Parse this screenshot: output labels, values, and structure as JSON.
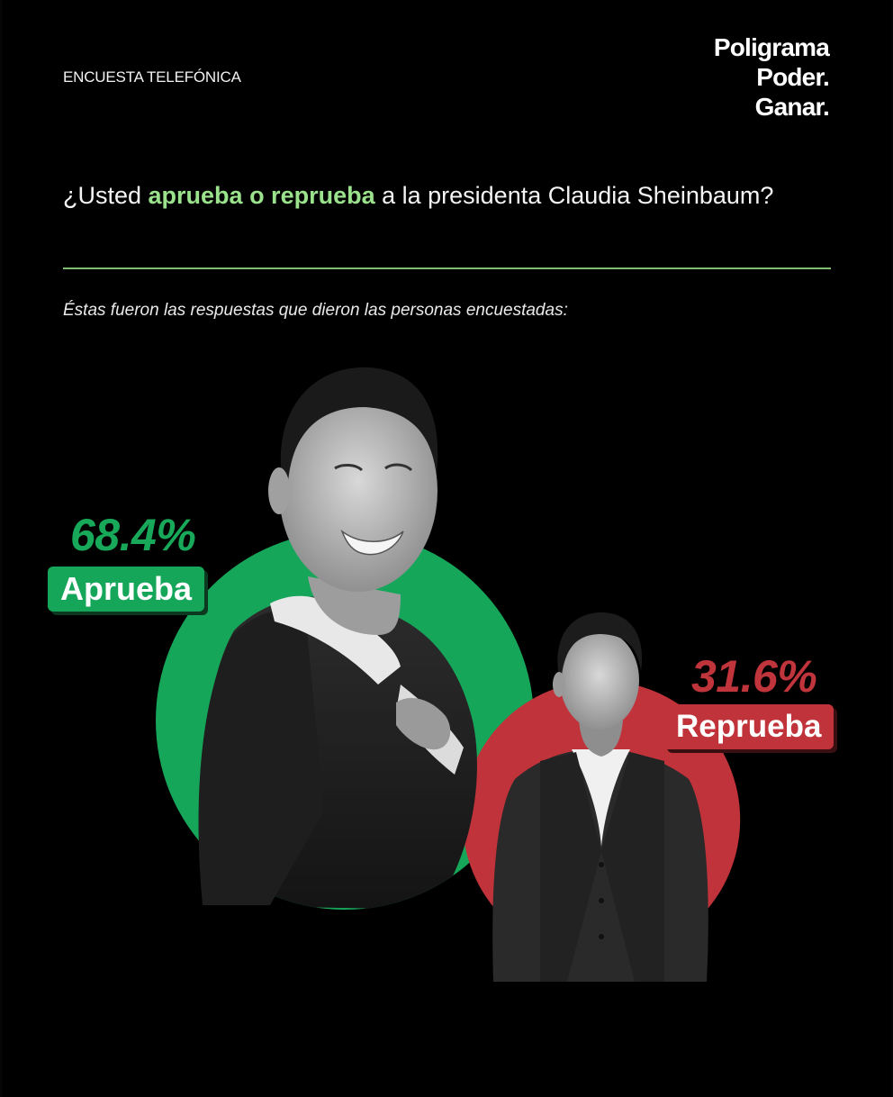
{
  "kicker": "ENCUESTA TELEFÓNICA",
  "brand": {
    "line1": "Poligrama",
    "line2": "Poder.",
    "line3": "Ganar."
  },
  "question": {
    "before": "¿Usted ",
    "highlight": "aprueba o reprueba",
    "after": " a la presidenta Claudia Sheinbaum?"
  },
  "subtitle": "Éstas fueron las respuestas que dieron las personas encuestadas:",
  "chart_data": {
    "type": "bubble",
    "categories": [
      "Aprueba",
      "Reprueba"
    ],
    "values": [
      68.4,
      31.6
    ],
    "value_labels": [
      "68.4%",
      "31.6%"
    ],
    "colors": [
      "#16a65a",
      "#c1333a"
    ]
  },
  "colors": {
    "accent_green": "#9be28c",
    "approve": "#16a65a",
    "disapprove": "#c1333a",
    "background": "#000000"
  }
}
